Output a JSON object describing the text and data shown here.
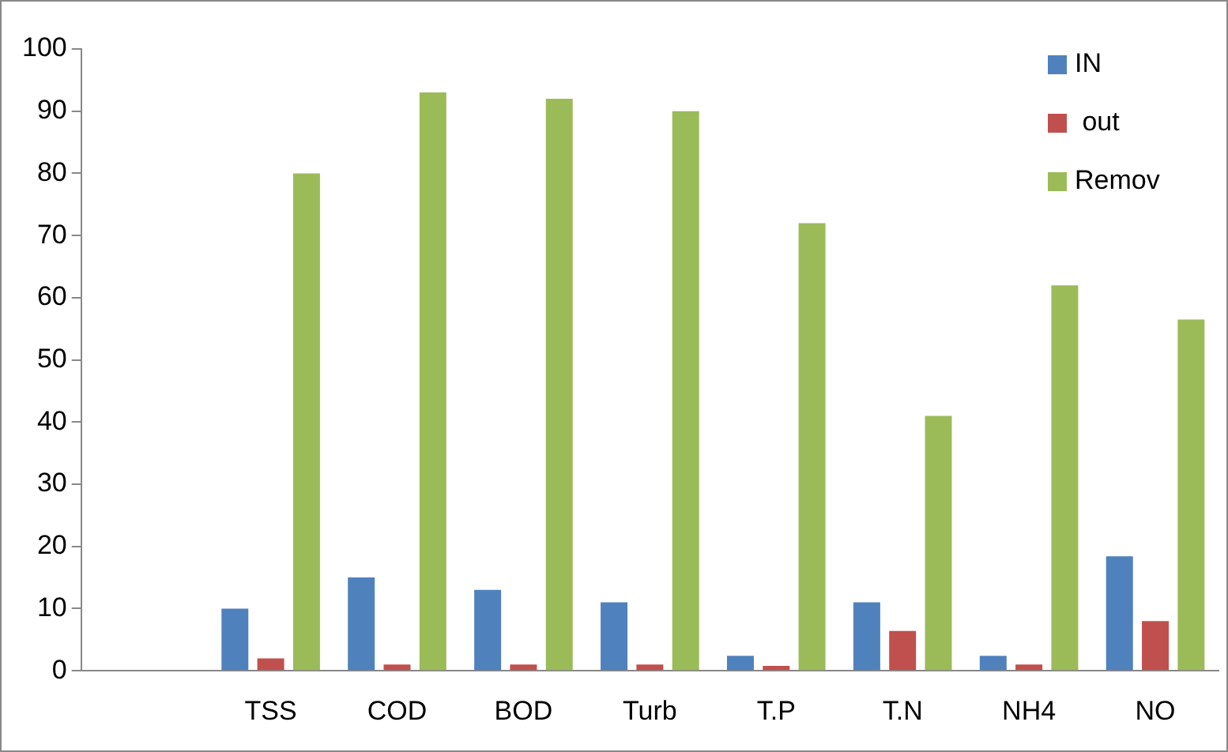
{
  "chart_data": {
    "type": "bar",
    "categories": [
      null,
      "TSS",
      "COD",
      "BOD",
      "Turb",
      "T.P",
      "T.N",
      "NH4",
      "NO"
    ],
    "series": [
      {
        "name": "IN",
        "color": "#4f81bd",
        "values": [
          null,
          10,
          15,
          13,
          11,
          2.4,
          11,
          2.4,
          18.4
        ]
      },
      {
        "name": " out",
        "color": "#c0504d",
        "values": [
          null,
          2,
          1,
          1,
          1,
          0.8,
          6.4,
          1,
          8
        ]
      },
      {
        "name": "Remov",
        "color": "#9bbb59",
        "values": [
          null,
          80,
          93,
          92,
          90,
          72,
          41,
          62,
          56.5
        ]
      }
    ],
    "ylim": [
      0,
      100
    ],
    "yticks": [
      0,
      10,
      20,
      30,
      40,
      50,
      60,
      70,
      80,
      90,
      100
    ],
    "grid": false,
    "legend": "top right"
  }
}
